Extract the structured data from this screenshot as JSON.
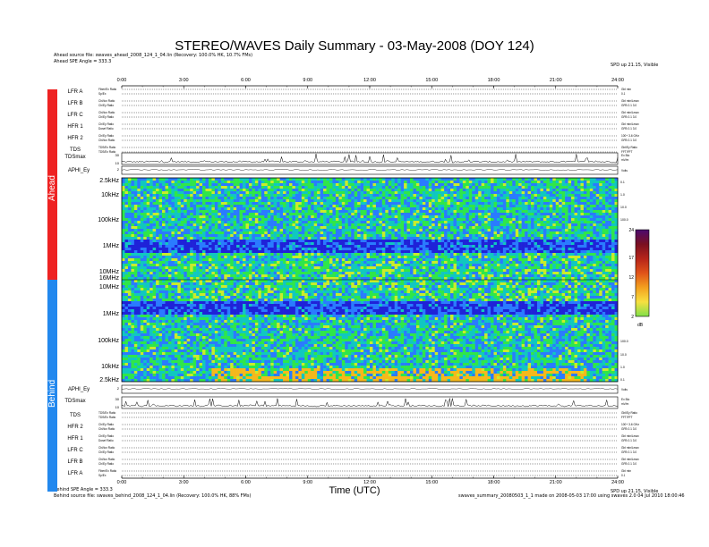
{
  "title": "STEREO/WAVES Daily Summary - 03-May-2008 (DOY 124)",
  "header": {
    "ahead_source": "Ahead source file: swaves_ahead_2008_124_1_04.lin (Recovery: 100.0% HK, 10.7% FMs)",
    "ahead_spe": "Ahead SPE Angle = 333.3",
    "version_right": "SPD up 21.15, Visible"
  },
  "footer": {
    "behind_spe": "Behind SPE Angle = 333.3",
    "behind_source": "Behind source file: swaves_behind_2008_124_1_04.lin (Recovery: 100.0% HK, 88% FMs)",
    "version_right": "SPD up 21.15, Visible",
    "right_info": "swaves_summary_20080503_1_1 made on 2008-05-03 17:00 using swaves 2.0 04 Jul 2010 18:00:46"
  },
  "spacecraft": {
    "ahead": "Ahead",
    "behind": "Behind",
    "ahead_color": "#ee2222",
    "behind_color": "#2288ee"
  },
  "x_axis": {
    "label": "Time (UTC)",
    "ticks": [
      "0:00",
      "3:00",
      "6:00",
      "9:00",
      "12:00",
      "15:00",
      "18:00",
      "21:00",
      "24:00"
    ],
    "range_hours": [
      0,
      24
    ]
  },
  "panels_top": [
    {
      "name": "LFR A",
      "sub1": "Fiber/Ex Ratio",
      "sub2": "Sp/Ex",
      "right1": "Gbl min",
      "right2": "0.1"
    },
    {
      "name": "LFR B",
      "sub1": "Chi/Iox Ratio",
      "sub2": "Ch/Ey Ratio",
      "right1": "Gbl min/Lmax",
      "right2": "GFB 0.1 3.0"
    },
    {
      "name": "LFR C",
      "sub1": "Chi/Iox Ratio",
      "sub2": "Ch/Ey Ratio",
      "right1": "Gbl min/Lmax",
      "right2": "GFB 0.1 3.0"
    },
    {
      "name": "HFR 1",
      "sub1": "Ch/Ey Ratio",
      "sub2": "Dosef Ratio",
      "right1": "Gbl min/Lmax",
      "right2": "GFB 0.1 3.0"
    },
    {
      "name": "HFR 2",
      "sub1": "Ch/Ey Ratio",
      "sub2": "Chi/Iox Ratio",
      "right1": "100+ 3-6 GHz",
      "right2": "GFB 0.1 3.0"
    },
    {
      "name": "TDS",
      "sub1": "TDS/Ex Ratio",
      "sub2": "TDS/Ex Ratio",
      "right1": "Gbl/Ey Ratio",
      "right2": "FFT/FFT"
    }
  ],
  "panels_bottom": [
    {
      "name": "TDS",
      "sub1": "TDS/Ex Ratio",
      "sub2": "TDS/Ex Ratio",
      "right1": "Gbl/Ey Ratio",
      "right2": "FFT/FFT"
    },
    {
      "name": "HFR 2",
      "sub1": "Ch/Ey Ratio",
      "sub2": "Chi/Iox Ratio",
      "right1": "100+ 3-6 GHz",
      "right2": "GFB 0.1 3.0"
    },
    {
      "name": "HFR 1",
      "sub1": "Ch/Ey Ratio",
      "sub2": "Dosef Ratio",
      "right1": "Gbl min/Lmax",
      "right2": "GFB 0.1 3.0"
    },
    {
      "name": "LFR C",
      "sub1": "Chi/Iox Ratio",
      "sub2": "Ch/Ey Ratio",
      "right1": "Gbl min/Lmax",
      "right2": "GFB 0.1 3.0"
    },
    {
      "name": "LFR B",
      "sub1": "Chi/Iox Ratio",
      "sub2": "Ch/Ey Ratio",
      "right1": "Gbl min/Lmax",
      "right2": "GFB 0.1 3.0"
    },
    {
      "name": "LFR A",
      "sub1": "Fiber/Ex Ratio",
      "sub2": "Sp/Ex",
      "right1": "Gbl min",
      "right2": "0.1"
    }
  ],
  "tdsmax_ahead": {
    "label": "TDSmax",
    "yticks": [
      "30",
      "10"
    ],
    "right": "Ex Blo\nmV/m"
  },
  "aphi_ahead": {
    "label": "APHI_Ey",
    "yticks": [
      "2"
    ],
    "right": "Volts"
  },
  "aphi_behind": {
    "label": "APHI_Ey",
    "yticks": [
      "2"
    ],
    "right": "Volts"
  },
  "tdsmax_behind": {
    "label": "TDSmax",
    "yticks": [
      "30",
      "10"
    ],
    "right": "Ex Blo\nmV/m"
  },
  "spectrogram": {
    "ahead_freq_labels": [
      "2.5kHz",
      "10kHz",
      "100kHz",
      "1MHz",
      "10MHz",
      "16MHz"
    ],
    "behind_freq_labels": [
      "10MHz",
      "1MHz",
      "100kHz",
      "10kHz",
      "2.5kHz"
    ],
    "right_ticks_ahead": [
      "0.1",
      "1.0",
      "10.0",
      "100.0"
    ],
    "right_ticks_behind": [
      "100.0",
      "10.0",
      "1.0",
      "0.1"
    ]
  },
  "colorbar": {
    "unit": "dB",
    "ticks": [
      "24",
      "17",
      "12",
      "7",
      "2"
    ],
    "range": [
      2,
      24
    ]
  }
}
